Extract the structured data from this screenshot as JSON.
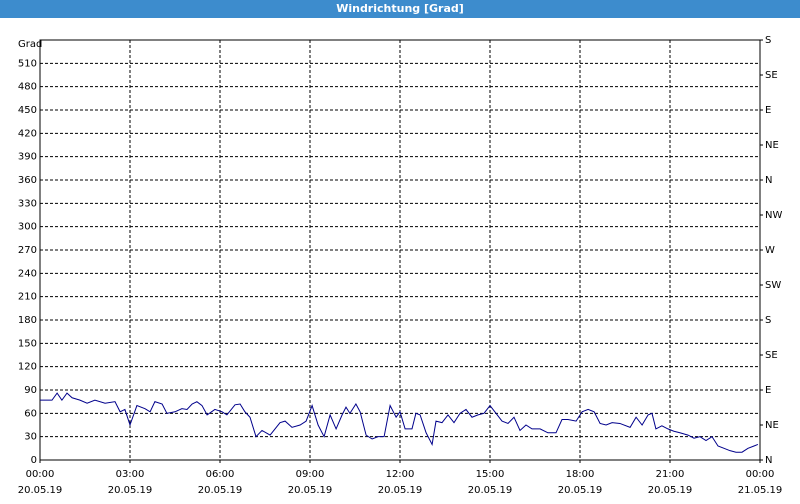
{
  "chart_data": {
    "type": "line",
    "title": "Windrichtung [Grad]",
    "ylabel": "Grad",
    "xlim": [
      0,
      24
    ],
    "xticks": [
      {
        "value": 0,
        "label": "00:00",
        "date": "20.05.19"
      },
      {
        "value": 3,
        "label": "03:00",
        "date": "20.05.19"
      },
      {
        "value": 6,
        "label": "06:00",
        "date": "20.05.19"
      },
      {
        "value": 9,
        "label": "09:00",
        "date": "20.05.19"
      },
      {
        "value": 12,
        "label": "12:00",
        "date": "20.05.19"
      },
      {
        "value": 15,
        "label": "15:00",
        "date": "20.05.19"
      },
      {
        "value": 18,
        "label": "18:00",
        "date": "20.05.19"
      },
      {
        "value": 21,
        "label": "21:00",
        "date": "20.05.19"
      },
      {
        "value": 24,
        "label": "00:00",
        "date": "21.05.19"
      }
    ],
    "ylim": [
      0,
      540
    ],
    "yticks": [
      0,
      30,
      60,
      90,
      120,
      150,
      180,
      210,
      240,
      270,
      300,
      330,
      360,
      390,
      420,
      450,
      480,
      510
    ],
    "y2lim": [
      0,
      540
    ],
    "y2ticks": [
      {
        "value": 0,
        "label": "N"
      },
      {
        "value": 45,
        "label": "NE"
      },
      {
        "value": 90,
        "label": "E"
      },
      {
        "value": 135,
        "label": "SE"
      },
      {
        "value": 180,
        "label": "S"
      },
      {
        "value": 225,
        "label": "SW"
      },
      {
        "value": 270,
        "label": "W"
      },
      {
        "value": 315,
        "label": "NW"
      },
      {
        "value": 360,
        "label": "N"
      },
      {
        "value": 405,
        "label": "NE"
      },
      {
        "value": 450,
        "label": "E"
      },
      {
        "value": 495,
        "label": "SE"
      },
      {
        "value": 540,
        "label": "S"
      }
    ],
    "grid": true,
    "x": [
      0,
      0.17,
      0.4,
      0.57,
      0.73,
      0.9,
      1.07,
      1.33,
      1.57,
      1.83,
      2.17,
      2.5,
      2.67,
      2.83,
      3,
      3.23,
      3.5,
      3.67,
      3.83,
      4.07,
      4.23,
      4.5,
      4.73,
      4.9,
      5.07,
      5.23,
      5.4,
      5.57,
      5.83,
      6.07,
      6.23,
      6.5,
      6.67,
      6.83,
      7,
      7.2,
      7.4,
      7.67,
      8,
      8.17,
      8.4,
      8.67,
      8.87,
      9.07,
      9.27,
      9.47,
      9.67,
      9.87,
      10.07,
      10.2,
      10.33,
      10.53,
      10.67,
      10.87,
      11.07,
      11.27,
      11.47,
      11.67,
      11.87,
      12,
      12.17,
      12.4,
      12.53,
      12.67,
      12.87,
      13.07,
      13.2,
      13.4,
      13.6,
      13.8,
      14,
      14.2,
      14.4,
      14.6,
      14.8,
      15,
      15.2,
      15.4,
      15.6,
      15.8,
      16,
      16.2,
      16.4,
      16.67,
      16.93,
      17.2,
      17.4,
      17.6,
      17.87,
      18.07,
      18.27,
      18.47,
      18.67,
      18.87,
      19.07,
      19.33,
      19.67,
      19.87,
      20.07,
      20.27,
      20.4,
      20.53,
      20.73,
      20.93,
      21.13,
      21.33,
      21.6,
      21.8,
      22,
      22.2,
      22.4,
      22.6,
      22.8,
      23,
      23.2,
      23.4,
      23.6,
      23.8,
      23.93
    ],
    "series": [
      {
        "color": "#00008b",
        "values": [
          77,
          77,
          77,
          86,
          77,
          86,
          80,
          77,
          73,
          77,
          73,
          75,
          62,
          65,
          45,
          70,
          66,
          62,
          75,
          72,
          60,
          62,
          66,
          65,
          72,
          75,
          70,
          58,
          65,
          62,
          58,
          71,
          72,
          62,
          55,
          30,
          38,
          32,
          48,
          50,
          42,
          45,
          50,
          70,
          45,
          30,
          58,
          40,
          58,
          68,
          60,
          72,
          62,
          32,
          27,
          30,
          30,
          70,
          55,
          62,
          40,
          40,
          60,
          58,
          35,
          20,
          50,
          48,
          58,
          48,
          60,
          65,
          55,
          58,
          60,
          70,
          60,
          50,
          47,
          55,
          38,
          45,
          40,
          40,
          35,
          35,
          52,
          52,
          50,
          62,
          65,
          62,
          47,
          45,
          48,
          47,
          42,
          55,
          45,
          58,
          60,
          40,
          44,
          40,
          37,
          35,
          32,
          28,
          30,
          25,
          30,
          18,
          15,
          12,
          10,
          10,
          15,
          18,
          20
        ]
      }
    ]
  }
}
